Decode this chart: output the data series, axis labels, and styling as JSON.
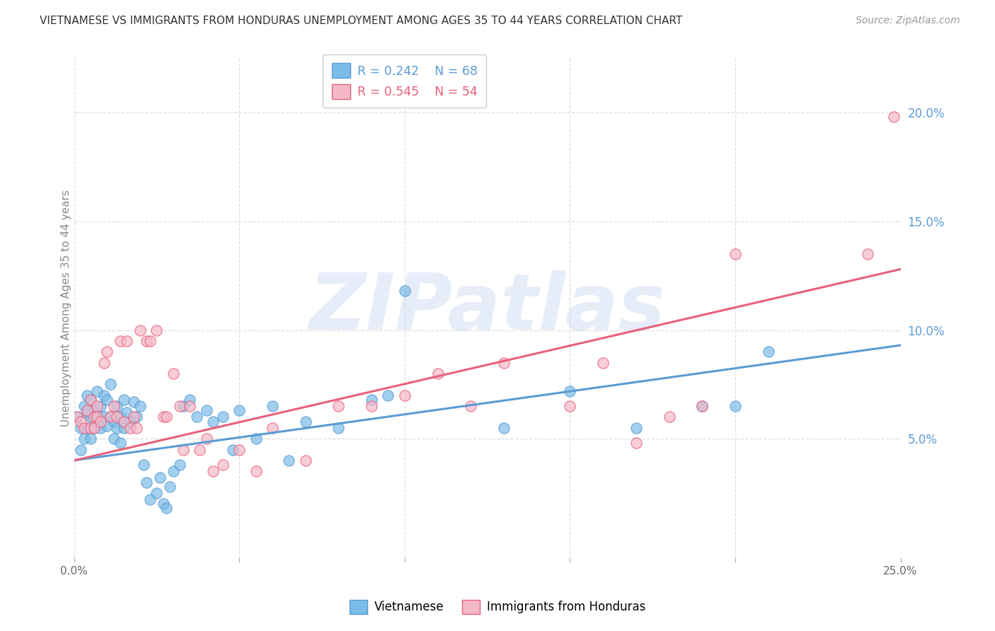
{
  "title": "VIETNAMESE VS IMMIGRANTS FROM HONDURAS UNEMPLOYMENT AMONG AGES 35 TO 44 YEARS CORRELATION CHART",
  "source": "Source: ZipAtlas.com",
  "ylabel": "Unemployment Among Ages 35 to 44 years",
  "xlim": [
    0.0,
    0.25
  ],
  "ylim": [
    -0.005,
    0.225
  ],
  "xticks": [
    0.0,
    0.05,
    0.1,
    0.15,
    0.2,
    0.25
  ],
  "yticks": [
    0.05,
    0.1,
    0.15,
    0.2
  ],
  "ytick_labels": [
    "5.0%",
    "10.0%",
    "15.0%",
    "20.0%"
  ],
  "xtick_labels": [
    "0.0%",
    "",
    "",
    "",
    "",
    "25.0%"
  ],
  "blue_color": "#7BBCE8",
  "blue_edge": "#5B9BD5",
  "pink_color": "#F5B8C8",
  "pink_edge": "#E8607A",
  "blue_R": 0.242,
  "blue_N": 68,
  "pink_R": 0.545,
  "pink_N": 54,
  "blue_name": "Vietnamese",
  "pink_name": "Immigrants from Honduras",
  "blue_trend": [
    0.0,
    0.25,
    0.04,
    0.093
  ],
  "pink_trend": [
    0.0,
    0.25,
    0.04,
    0.128
  ],
  "blue_x": [
    0.001,
    0.002,
    0.002,
    0.003,
    0.003,
    0.004,
    0.004,
    0.004,
    0.005,
    0.005,
    0.005,
    0.006,
    0.006,
    0.007,
    0.007,
    0.008,
    0.008,
    0.009,
    0.009,
    0.01,
    0.01,
    0.011,
    0.011,
    0.012,
    0.012,
    0.013,
    0.013,
    0.014,
    0.014,
    0.015,
    0.015,
    0.016,
    0.017,
    0.018,
    0.019,
    0.02,
    0.021,
    0.022,
    0.023,
    0.025,
    0.026,
    0.027,
    0.028,
    0.029,
    0.03,
    0.032,
    0.033,
    0.035,
    0.037,
    0.04,
    0.042,
    0.045,
    0.048,
    0.05,
    0.055,
    0.06,
    0.065,
    0.07,
    0.08,
    0.09,
    0.095,
    0.1,
    0.13,
    0.15,
    0.17,
    0.19,
    0.2,
    0.21
  ],
  "blue_y": [
    0.06,
    0.055,
    0.045,
    0.065,
    0.05,
    0.07,
    0.062,
    0.055,
    0.068,
    0.06,
    0.05,
    0.063,
    0.055,
    0.072,
    0.06,
    0.065,
    0.055,
    0.07,
    0.06,
    0.068,
    0.056,
    0.075,
    0.06,
    0.058,
    0.05,
    0.065,
    0.055,
    0.06,
    0.048,
    0.068,
    0.055,
    0.062,
    0.058,
    0.067,
    0.06,
    0.065,
    0.038,
    0.03,
    0.022,
    0.025,
    0.032,
    0.02,
    0.018,
    0.028,
    0.035,
    0.038,
    0.065,
    0.068,
    0.06,
    0.063,
    0.058,
    0.06,
    0.045,
    0.063,
    0.05,
    0.065,
    0.04,
    0.058,
    0.055,
    0.068,
    0.07,
    0.118,
    0.055,
    0.072,
    0.055,
    0.065,
    0.065,
    0.09
  ],
  "pink_x": [
    0.001,
    0.002,
    0.003,
    0.004,
    0.005,
    0.005,
    0.006,
    0.006,
    0.007,
    0.007,
    0.008,
    0.009,
    0.01,
    0.011,
    0.012,
    0.013,
    0.014,
    0.015,
    0.016,
    0.017,
    0.018,
    0.019,
    0.02,
    0.022,
    0.023,
    0.025,
    0.027,
    0.028,
    0.03,
    0.032,
    0.033,
    0.035,
    0.038,
    0.04,
    0.042,
    0.045,
    0.05,
    0.055,
    0.06,
    0.07,
    0.08,
    0.09,
    0.1,
    0.11,
    0.12,
    0.13,
    0.15,
    0.16,
    0.17,
    0.18,
    0.19,
    0.2,
    0.24,
    0.248
  ],
  "pink_y": [
    0.06,
    0.058,
    0.055,
    0.063,
    0.068,
    0.055,
    0.06,
    0.055,
    0.065,
    0.06,
    0.058,
    0.085,
    0.09,
    0.06,
    0.065,
    0.06,
    0.095,
    0.058,
    0.095,
    0.055,
    0.06,
    0.055,
    0.1,
    0.095,
    0.095,
    0.1,
    0.06,
    0.06,
    0.08,
    0.065,
    0.045,
    0.065,
    0.045,
    0.05,
    0.035,
    0.038,
    0.045,
    0.035,
    0.055,
    0.04,
    0.065,
    0.065,
    0.07,
    0.08,
    0.065,
    0.085,
    0.065,
    0.085,
    0.048,
    0.06,
    0.065,
    0.135,
    0.135,
    0.198
  ],
  "watermark": "ZIPatlas",
  "bg_color": "#FFFFFF",
  "grid_color": "#DDDDDD",
  "tick_label_color": "#5B9BD5",
  "ylabel_color": "#888888"
}
